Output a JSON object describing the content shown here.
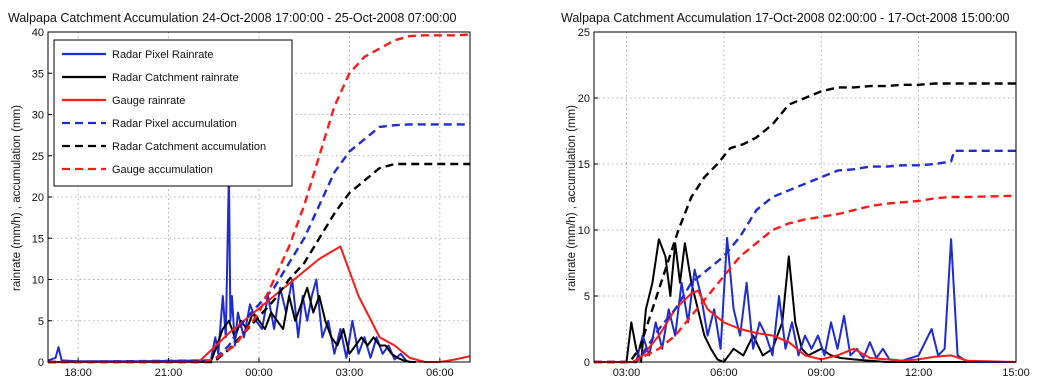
{
  "chart_data": [
    {
      "type": "line",
      "title": "Walpapa Catchment Accumulation 24-Oct-2008 17:00:00 - 25-Oct-2008 07:00:00",
      "xlabel": "",
      "ylabel": "rainrate (mm/h) , accumulation (mm)",
      "x_unit": "hours since 24-Oct-2008 17:00",
      "xlim": [
        0,
        14
      ],
      "ylim": [
        0,
        40
      ],
      "xticks": [
        1,
        4,
        7,
        10,
        13
      ],
      "xtick_labels": [
        "18:00",
        "21:00",
        "00:00",
        "03:00",
        "06:00"
      ],
      "yticks": [
        0,
        5,
        10,
        15,
        20,
        25,
        30,
        35,
        40
      ],
      "ytick_labels": [
        "0",
        "5",
        "10",
        "15",
        "20",
        "25",
        "30",
        "35",
        "40"
      ],
      "grid": true,
      "legend": "top-left",
      "series": [
        {
          "name": "Radar Pixel Rainrate",
          "color": "#1f2bd6",
          "style": "solid",
          "x": [
            0,
            0.25,
            0.35,
            0.45,
            1,
            3,
            5.4,
            5.55,
            5.65,
            5.8,
            5.9,
            6.0,
            6.05,
            6.1,
            6.2,
            6.3,
            6.5,
            6.7,
            6.9,
            7.1,
            7.3,
            7.5,
            7.7,
            7.9,
            8.1,
            8.3,
            8.45,
            8.6,
            8.75,
            8.9,
            9.1,
            9.3,
            9.5,
            9.7,
            9.9,
            10.1,
            10.3,
            10.5,
            10.7,
            10.9,
            11.1,
            11.3,
            11.5,
            11.7,
            11.9,
            12.1,
            12.2
          ],
          "values": [
            0.2,
            0.5,
            1.8,
            0.2,
            0.1,
            0.1,
            0.2,
            3,
            1,
            8,
            3,
            23,
            5,
            8,
            2,
            6,
            3,
            7,
            5,
            4,
            8,
            4,
            9,
            6,
            10,
            3,
            8,
            5,
            8,
            10,
            3,
            5,
            1,
            4,
            0.5,
            5,
            1,
            3,
            0.5,
            3,
            1,
            2,
            0.3,
            1,
            0.1,
            0,
            0
          ]
        },
        {
          "name": "Radar Catchment rainrate",
          "color": "#000000",
          "style": "solid",
          "x": [
            0,
            5.4,
            5.6,
            5.8,
            6.0,
            6.2,
            6.4,
            6.6,
            6.8,
            7.0,
            7.2,
            7.4,
            7.6,
            7.8,
            8.0,
            8.2,
            8.4,
            8.6,
            8.8,
            9.0,
            9.2,
            9.4,
            9.6,
            9.8,
            10.0,
            10.2,
            10.4,
            10.6,
            10.8,
            11.0,
            11.2,
            11.4,
            11.6,
            11.8,
            12.0,
            12.2
          ],
          "values": [
            0,
            0,
            2,
            4,
            5,
            3,
            5,
            4,
            6,
            5,
            4,
            6,
            5,
            4,
            8,
            5,
            7,
            9,
            6,
            8,
            5,
            3,
            2,
            4,
            1,
            2,
            3,
            2,
            3,
            2,
            2,
            1,
            0.5,
            0.2,
            0,
            0
          ]
        },
        {
          "name": "Gauge rainrate",
          "color": "#ff1a1a",
          "style": "solid",
          "x": [
            0,
            5.0,
            6.0,
            7.0,
            8.0,
            9.0,
            9.7,
            10.3,
            11.0,
            11.5,
            12.0,
            12.5,
            13.0,
            13.5,
            14.0
          ],
          "values": [
            0,
            0,
            3.5,
            6.5,
            9.5,
            12.5,
            14,
            8,
            3,
            2,
            0.5,
            0,
            0,
            0.3,
            0.7
          ]
        },
        {
          "name": "Radar Pixel accumulation",
          "color": "#1f2bd6",
          "style": "dashed",
          "x": [
            0,
            5.5,
            6.0,
            6.5,
            7.0,
            7.5,
            8.0,
            8.5,
            9.0,
            9.5,
            10.0,
            10.5,
            11.0,
            11.5,
            12.0,
            13.0,
            14.0
          ],
          "values": [
            0,
            0.2,
            2,
            5,
            7,
            9,
            12,
            15,
            19,
            23,
            25.5,
            27,
            28.5,
            28.7,
            28.8,
            28.8,
            28.8
          ]
        },
        {
          "name": "Radar Catchment accumulation",
          "color": "#000000",
          "style": "dashed",
          "x": [
            0,
            5.5,
            6.0,
            6.5,
            7.0,
            7.5,
            8.0,
            8.5,
            9.0,
            9.5,
            10.0,
            10.5,
            11.0,
            11.5,
            12.0,
            13.0,
            14.0
          ],
          "values": [
            0,
            0,
            1.5,
            3.5,
            5.5,
            7.5,
            10,
            12,
            15,
            18,
            20.5,
            22,
            23.5,
            24,
            24,
            24,
            24
          ]
        },
        {
          "name": "Gauge accumulation",
          "color": "#ff1a1a",
          "style": "dashed",
          "x": [
            0,
            5.2,
            5.6,
            6.2,
            7.0,
            7.5,
            8.0,
            8.5,
            9.0,
            9.5,
            10.0,
            10.5,
            11.0,
            11.5,
            12.0,
            12.5,
            13.0,
            13.5,
            14.0
          ],
          "values": [
            0,
            0,
            0.5,
            2,
            6,
            10,
            14,
            19,
            25,
            31,
            35,
            37,
            38,
            39,
            39.5,
            39.6,
            39.6,
            39.6,
            39.7
          ]
        }
      ]
    },
    {
      "type": "line",
      "title": "Walpapa Catchment Accumulation 17-Oct-2008 02:00:00 - 17-Oct-2008 15:00:00",
      "xlabel": "",
      "ylabel": "rainrate (mm/h) , accumulation (mm)",
      "x_unit": "hours since 17-Oct-2008 02:00",
      "xlim": [
        0,
        13
      ],
      "ylim": [
        0,
        25
      ],
      "xticks": [
        1,
        4,
        7,
        10,
        13
      ],
      "xtick_labels": [
        "03:00",
        "06:00",
        "09:00",
        "12:00",
        "15:00"
      ],
      "yticks": [
        0,
        5,
        10,
        15,
        20,
        25
      ],
      "ytick_labels": [
        "0",
        "5",
        "10",
        "15",
        "20",
        "25"
      ],
      "grid": true,
      "series": [
        {
          "name": "",
          "color": "#000000",
          "style": "solid",
          "x": [
            0,
            1.0,
            1.15,
            1.3,
            1.45,
            1.6,
            1.8,
            2.0,
            2.2,
            2.35,
            2.5,
            2.65,
            2.8,
            3.0,
            3.2,
            3.4,
            3.6,
            3.8,
            4.0,
            4.3,
            4.6,
            4.9,
            5.2,
            5.5,
            5.8,
            6.0,
            6.2,
            6.4,
            6.6,
            7.0,
            7.3,
            7.6,
            8.0,
            8.5,
            9.0,
            9.5,
            10.0,
            10.5,
            11.0,
            13.0
          ],
          "values": [
            0,
            0,
            3,
            1,
            0,
            4,
            6,
            9.3,
            8,
            5,
            9,
            6,
            9,
            6,
            4,
            2,
            1,
            0.2,
            0,
            1,
            0.5,
            2,
            0.5,
            1,
            3,
            8,
            3,
            1,
            0.5,
            1,
            0.5,
            0.3,
            0.2,
            0.1,
            0,
            0,
            0,
            0,
            0,
            0
          ]
        },
        {
          "name": "",
          "color": "#1f2bd6",
          "style": "solid",
          "x": [
            0,
            1.3,
            1.5,
            1.7,
            1.9,
            2.1,
            2.3,
            2.5,
            2.7,
            2.9,
            3.1,
            3.3,
            3.5,
            3.7,
            3.9,
            4.1,
            4.3,
            4.5,
            4.7,
            4.9,
            5.1,
            5.3,
            5.5,
            5.7,
            5.9,
            6.1,
            6.3,
            6.5,
            6.7,
            6.9,
            7.1,
            7.3,
            7.5,
            7.7,
            7.9,
            8.1,
            8.3,
            8.5,
            8.7,
            8.9,
            9.1,
            9.5,
            10.0,
            10.4,
            10.6,
            10.8,
            11.0,
            11.2,
            11.5,
            13.0
          ],
          "values": [
            0,
            0,
            2,
            0.5,
            3,
            1,
            4,
            2,
            6,
            3,
            7,
            5,
            2,
            4,
            1,
            9.4,
            4,
            2,
            6,
            1,
            3,
            2,
            0.5,
            5,
            1,
            3,
            0.5,
            2,
            1,
            2,
            0.5,
            3,
            1,
            3.5,
            0.5,
            1,
            0.3,
            1.5,
            0.3,
            1,
            0.2,
            0.1,
            0.5,
            2.5,
            0.5,
            1,
            9.3,
            0.5,
            0,
            0
          ]
        },
        {
          "name": "",
          "color": "#ff1a1a",
          "style": "solid",
          "x": [
            0,
            1.2,
            1.5,
            2.0,
            2.5,
            3.0,
            3.2,
            3.5,
            4.0,
            4.5,
            5.0,
            5.5,
            6.0,
            6.5,
            7.0,
            7.5,
            8.0,
            8.5,
            9.0,
            9.5,
            10.0,
            10.5,
            11.0,
            11.5,
            13.0
          ],
          "values": [
            0,
            0,
            0.5,
            2,
            4,
            5.2,
            5.4,
            4,
            3,
            2.5,
            2.2,
            2,
            1.5,
            0.5,
            0.2,
            0.5,
            1,
            0.3,
            0.2,
            0.1,
            0.2,
            0.4,
            0.5,
            0.1,
            0
          ]
        },
        {
          "name": "",
          "color": "#000000",
          "style": "dashed",
          "x": [
            0,
            1.1,
            1.4,
            1.8,
            2.2,
            2.6,
            3.0,
            3.4,
            3.8,
            4.2,
            4.6,
            5.0,
            5.5,
            6.0,
            6.5,
            7.0,
            7.5,
            8.0,
            8.5,
            9.0,
            9.5,
            10.0,
            10.5,
            11.0,
            12.0,
            13.0
          ],
          "values": [
            0,
            0,
            1,
            4,
            7,
            10,
            12.5,
            14,
            15,
            16.2,
            16.5,
            17,
            18,
            19.5,
            20,
            20.5,
            20.8,
            20.8,
            20.9,
            20.9,
            21,
            21,
            21.1,
            21.1,
            21.1,
            21.1
          ]
        },
        {
          "name": "",
          "color": "#1f2bd6",
          "style": "dashed",
          "x": [
            0,
            1.3,
            1.6,
            2.0,
            2.5,
            3.0,
            3.5,
            4.0,
            4.5,
            5.0,
            5.5,
            6.0,
            6.5,
            7.0,
            7.5,
            8.0,
            8.5,
            9.0,
            9.5,
            10.0,
            10.5,
            11.0,
            11.1,
            11.5,
            13.0
          ],
          "values": [
            0,
            0,
            1,
            2.5,
            4,
            6,
            7,
            8,
            9.5,
            11.5,
            12.5,
            13,
            13.5,
            14,
            14.5,
            14.6,
            14.8,
            14.8,
            14.9,
            14.9,
            15,
            15.2,
            16,
            16,
            16
          ]
        },
        {
          "name": "",
          "color": "#ff1a1a",
          "style": "dashed",
          "x": [
            0,
            1.2,
            1.6,
            2.0,
            2.5,
            3.0,
            3.5,
            4.0,
            4.5,
            5.0,
            5.5,
            6.0,
            6.5,
            7.0,
            7.5,
            8.0,
            8.5,
            9.0,
            9.5,
            10.0,
            10.5,
            11.0,
            11.5,
            13.0
          ],
          "values": [
            0,
            0,
            0.5,
            1,
            2,
            3.5,
            5,
            6.5,
            8,
            9,
            10,
            10.5,
            10.8,
            11,
            11.2,
            11.5,
            11.8,
            12,
            12.1,
            12.2,
            12.4,
            12.5,
            12.5,
            12.6
          ]
        }
      ]
    }
  ]
}
